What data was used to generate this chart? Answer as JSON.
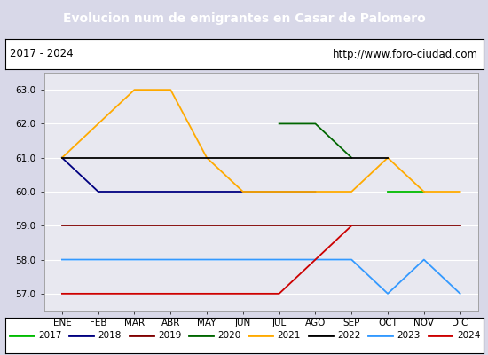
{
  "title": "Evolucion num de emigrantes en Casar de Palomero",
  "title_bg": "#4a7fc1",
  "subtitle_left": "2017 - 2024",
  "subtitle_right": "http://www.foro-ciudad.com",
  "months": [
    "ENE",
    "FEB",
    "MAR",
    "ABR",
    "MAY",
    "JUN",
    "JUL",
    "AGO",
    "SEP",
    "OCT",
    "NOV",
    "DIC"
  ],
  "ylim": [
    56.5,
    63.5
  ],
  "yticks": [
    57.0,
    58.0,
    59.0,
    60.0,
    61.0,
    62.0,
    63.0
  ],
  "series": {
    "2017": {
      "color": "#00bb00",
      "data": [
        null,
        null,
        null,
        null,
        null,
        null,
        null,
        null,
        null,
        60.0,
        60.0,
        null
      ]
    },
    "2018": {
      "color": "#000080",
      "data": [
        61.0,
        60.0,
        60.0,
        60.0,
        60.0,
        60.0,
        60.0,
        60.0,
        null,
        null,
        null,
        null
      ]
    },
    "2019": {
      "color": "#800000",
      "data": [
        59.0,
        59.0,
        59.0,
        59.0,
        59.0,
        59.0,
        59.0,
        59.0,
        59.0,
        59.0,
        59.0,
        59.0
      ]
    },
    "2020": {
      "color": "#006600",
      "data": [
        null,
        null,
        null,
        null,
        null,
        null,
        62.0,
        62.0,
        61.0,
        null,
        null,
        null
      ]
    },
    "2021": {
      "color": "#ffaa00",
      "data": [
        61.0,
        62.0,
        63.0,
        63.0,
        61.0,
        60.0,
        60.0,
        60.0,
        60.0,
        61.0,
        60.0,
        60.0
      ]
    },
    "2022": {
      "color": "#000000",
      "data": [
        61.0,
        61.0,
        61.0,
        61.0,
        61.0,
        61.0,
        61.0,
        61.0,
        61.0,
        61.0,
        null,
        null
      ]
    },
    "2023": {
      "color": "#3399ff",
      "data": [
        58.0,
        58.0,
        58.0,
        58.0,
        58.0,
        58.0,
        58.0,
        58.0,
        58.0,
        57.0,
        58.0,
        57.0
      ]
    },
    "2024": {
      "color": "#cc0000",
      "data": [
        57.0,
        57.0,
        57.0,
        57.0,
        57.0,
        57.0,
        57.0,
        58.0,
        59.0,
        null,
        null,
        null
      ]
    }
  },
  "legend_order": [
    "2017",
    "2018",
    "2019",
    "2020",
    "2021",
    "2022",
    "2023",
    "2024"
  ],
  "bg_color": "#d8d8e8",
  "plot_bg": "#e8e8f0",
  "grid_color": "#ffffff",
  "fig_width": 5.5,
  "fig_height": 4.0,
  "dpi": 100
}
